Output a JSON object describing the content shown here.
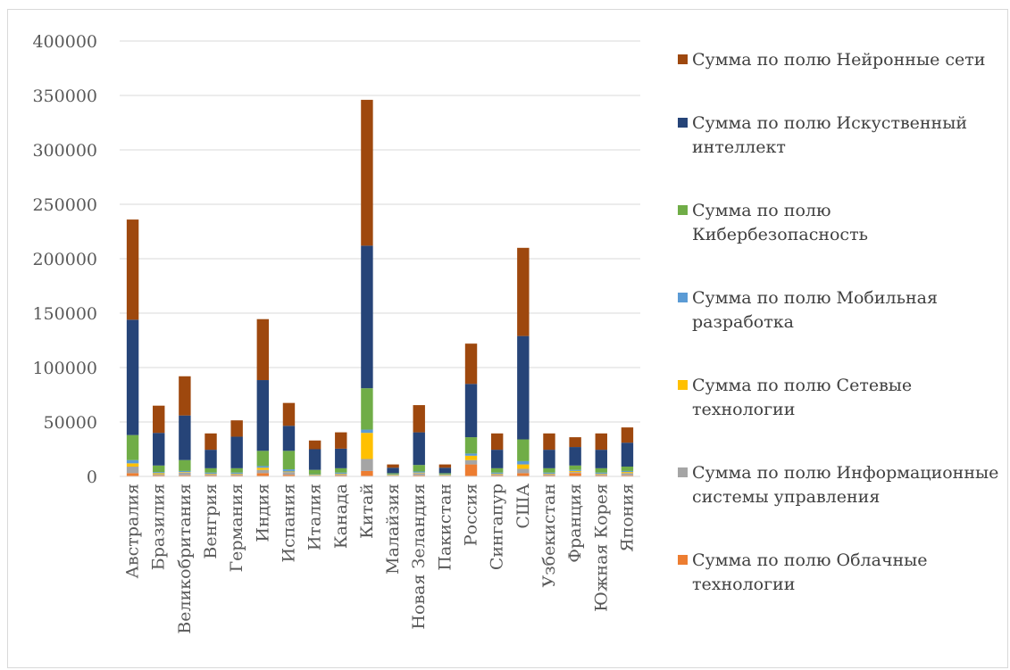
{
  "chart_data": {
    "type": "bar",
    "stacked": true,
    "categories": [
      "Австралия",
      "Бразилия",
      "Великобритания",
      "Венгрия",
      "Германия",
      "Индия",
      "Испания",
      "Италия",
      "Канада",
      "Китай",
      "Малайзия",
      "Новая Зеландия",
      "Пакистан",
      "Россия",
      "Сингапур",
      "США",
      "Узбекистан",
      "Франция",
      "Южная Корея",
      "Япония"
    ],
    "ylim": [
      0,
      400000
    ],
    "yticks": [
      0,
      50000,
      100000,
      150000,
      200000,
      250000,
      300000,
      350000,
      400000
    ],
    "grid": true,
    "legend_position": "right",
    "series": [
      {
        "name": "Сумма по полю Облачные технологии",
        "color": "#ED7D31",
        "values": [
          3000,
          1000,
          1000,
          1000,
          1000,
          3000,
          1500,
          500,
          1000,
          5000,
          500,
          1000,
          500,
          11000,
          1000,
          3000,
          1000,
          3000,
          1000,
          1000
        ]
      },
      {
        "name": "Сумма по полю Информационные системы управления",
        "color": "#A5A5A5",
        "values": [
          6000,
          1000,
          2500,
          1000,
          1000,
          3000,
          2500,
          500,
          1000,
          11000,
          500,
          2000,
          500,
          4000,
          1000,
          4000,
          1000,
          1000,
          1000,
          2000
        ]
      },
      {
        "name": "Сумма по полю Сетевые технологии",
        "color": "#FFC000",
        "values": [
          3000,
          1000,
          500,
          500,
          500,
          2000,
          500,
          500,
          500,
          24000,
          500,
          500,
          500,
          4000,
          500,
          4000,
          500,
          1000,
          500,
          1000
        ]
      },
      {
        "name": "Сумма по полю Мобильная разработка",
        "color": "#5B9BD5",
        "values": [
          3000,
          1000,
          1000,
          1000,
          1000,
          1500,
          2000,
          500,
          1000,
          3000,
          500,
          1000,
          500,
          2000,
          1000,
          3000,
          1000,
          1000,
          1000,
          1000
        ]
      },
      {
        "name": "Сумма по полю Кибербезопасность",
        "color": "#70AD47",
        "values": [
          23000,
          6000,
          10000,
          4000,
          4000,
          14000,
          17000,
          4000,
          4000,
          38000,
          1000,
          6000,
          1000,
          15000,
          4000,
          20000,
          4000,
          4000,
          4000,
          4000
        ]
      },
      {
        "name": "Сумма по полю Искуственный интеллект",
        "color": "#264478",
        "values": [
          106000,
          30000,
          41000,
          17000,
          29000,
          65000,
          23000,
          19000,
          18000,
          131000,
          5000,
          30000,
          5000,
          49000,
          17000,
          95000,
          17000,
          17000,
          17000,
          22000
        ]
      },
      {
        "name": "Сумма по полю Нейронные сети",
        "color": "#9E480E",
        "values": [
          92000,
          25000,
          36000,
          15000,
          15000,
          56000,
          21000,
          8000,
          15000,
          134000,
          3000,
          25000,
          3000,
          37000,
          15000,
          81000,
          15000,
          9000,
          15000,
          14000
        ]
      }
    ],
    "legend_order": [
      6,
      5,
      4,
      3,
      2,
      1,
      0
    ]
  }
}
